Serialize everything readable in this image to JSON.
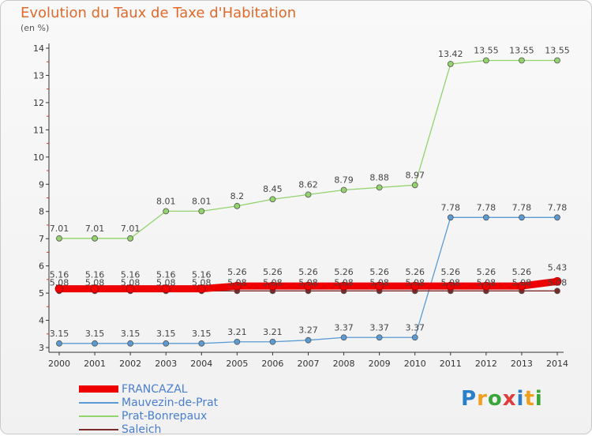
{
  "title": "Evolution du Taux de Taxe d'Habitation",
  "unit_label": "(en %)",
  "logo_text": "Proxiti",
  "logo_colors": [
    "#2a7fc9",
    "#f0a020",
    "#3aa63a",
    "#e03c3c",
    "#2a7fc9",
    "#f0a020",
    "#3aa63a"
  ],
  "chart_data": {
    "type": "line",
    "title": "Evolution du Taux de Taxe d'Habitation",
    "ylabel": "(en %)",
    "xlabel": "",
    "x": [
      "2000",
      "2001",
      "2002",
      "2003",
      "2004",
      "2005",
      "2006",
      "2007",
      "2008",
      "2009",
      "2010",
      "2011",
      "2012",
      "2013",
      "2014"
    ],
    "ylim": [
      3,
      14
    ],
    "yticks": [
      3,
      4,
      5,
      6,
      7,
      8,
      9,
      10,
      11,
      12,
      13,
      14
    ],
    "grid": false,
    "legend_position": "bottom-left",
    "series": [
      {
        "name": "FRANCAZAL",
        "color": "#ee0000",
        "values": [
          5.16,
          5.16,
          5.16,
          5.16,
          5.16,
          5.26,
          5.26,
          5.26,
          5.26,
          5.26,
          5.26,
          5.26,
          5.26,
          5.26,
          5.43
        ],
        "labels": [
          "5.16",
          "5.16",
          "5.16",
          "5.16",
          "5.16",
          "5.26",
          "5.26",
          "5.26",
          "5.26",
          "5.26",
          "5.26",
          "5.26",
          "5.26",
          "5.26",
          "5.43"
        ]
      },
      {
        "name": "Mauvezin-de-Prat",
        "color": "#5b9bd5",
        "values": [
          3.15,
          3.15,
          3.15,
          3.15,
          3.15,
          3.21,
          3.21,
          3.27,
          3.37,
          3.37,
          3.37,
          7.78,
          7.78,
          7.78,
          7.78
        ],
        "labels": [
          "3.15",
          "3.15",
          "3.15",
          "3.15",
          "3.15",
          "3.21",
          "3.21",
          "3.27",
          "3.37",
          "3.37",
          "3.37",
          "7.78",
          "7.78",
          "7.78",
          "7.78"
        ]
      },
      {
        "name": "Prat-Bonrepaux",
        "color": "#92d36b",
        "values": [
          7.01,
          7.01,
          7.01,
          8.01,
          8.01,
          8.2,
          8.45,
          8.62,
          8.79,
          8.88,
          8.97,
          13.42,
          13.55,
          13.55,
          13.55
        ],
        "labels": [
          "7.01",
          "7.01",
          "7.01",
          "8.01",
          "8.01",
          "8.2",
          "8.45",
          "8.62",
          "8.79",
          "8.88",
          "8.97",
          "13.42",
          "13.55",
          "13.55",
          "13.55"
        ]
      },
      {
        "name": "Saleich",
        "color": "#7a2a2a",
        "values": [
          5.08,
          5.08,
          5.08,
          5.08,
          5.08,
          5.08,
          5.08,
          5.08,
          5.08,
          5.08,
          5.08,
          5.08,
          5.08,
          5.08,
          5.08
        ],
        "labels": [
          "5.08",
          "5.08",
          "5.08",
          "5.08",
          "5.08",
          "5.08",
          "5.08",
          "5.08",
          "5.08",
          "5.08",
          "5.08",
          "5.08",
          "5.08",
          "5.08",
          "5.08"
        ]
      }
    ]
  }
}
